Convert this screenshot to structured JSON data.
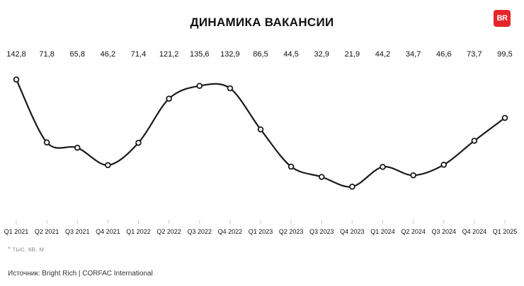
{
  "header": {
    "title": "ДИНАМИКА ВАКАНСИИ",
    "logo_text": "BR"
  },
  "footnote": "* тыс. кв. м",
  "source": "Источник: Bright Rich | CORFAC International",
  "colors": {
    "line": "#1a1a1a",
    "accent": "#e5252a",
    "tick": "#cccccc"
  },
  "chart_data": {
    "type": "line",
    "title": "ДИНАМИКА ВАКАНСИИ",
    "xlabel": "",
    "ylabel": "",
    "unit": "* тыс. кв. м",
    "grid": false,
    "legend": "none",
    "categories": [
      "Q1 2021",
      "Q2 2021",
      "Q3 2021",
      "Q4 2021",
      "Q1 2022",
      "Q2 2022",
      "Q3 2022",
      "Q4 2022",
      "Q1 2023",
      "Q2 2023",
      "Q3 2023",
      "Q4 2023",
      "Q1 2024",
      "Q2 2024",
      "Q3 2024",
      "Q4 2024",
      "Q1 2025"
    ],
    "values": [
      142.8,
      71.8,
      65.8,
      46.2,
      71.4,
      121.2,
      135.6,
      132.9,
      86.5,
      44.5,
      32.9,
      21.9,
      44.2,
      34.7,
      46.6,
      73.7,
      99.5
    ],
    "value_labels": [
      "142,8",
      "71,8",
      "65,8",
      "46,2",
      "71,4",
      "121,2",
      "135,6",
      "132,9",
      "86,5",
      "44,5",
      "32,9",
      "21,9",
      "44,2",
      "34,7",
      "46,6",
      "73,7",
      "99,5"
    ]
  }
}
